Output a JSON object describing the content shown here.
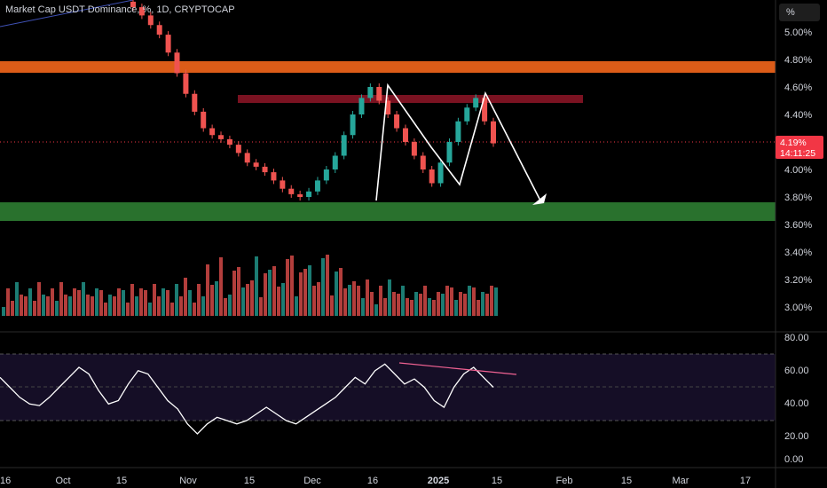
{
  "header": {
    "title": "Market Cap USDT Dominance, %, 1D, CRYPTOCAP",
    "scale_button": "%"
  },
  "price_badge": {
    "value": "4.19%",
    "countdown": "14:11:25"
  },
  "price_axis": [
    "5.00%",
    "4.80%",
    "4.60%",
    "4.40%",
    "4.20%",
    "4.00%",
    "3.80%",
    "3.60%",
    "3.40%",
    "3.20%",
    "3.00%"
  ],
  "rsi_axis": [
    "80.00",
    "60.00",
    "40.00",
    "20.00",
    "0.00"
  ],
  "time_axis": [
    "16",
    "Oct",
    "15",
    "Nov",
    "15",
    "Dec",
    "16",
    "2025",
    "15",
    "Feb",
    "15",
    "Mar",
    "17"
  ],
  "colors": {
    "up": "#26a69a",
    "down": "#ef5350",
    "resistance_zone": "#f4661b",
    "support_zone": "#2e7d32",
    "rsi_line": "#ffffff",
    "divergence": "#f06292",
    "badge": "#f23645"
  },
  "chart_data": {
    "type": "line",
    "series": [
      {
        "values": [
          5.18,
          5.12,
          5.05,
          4.98,
          4.85,
          4.7,
          4.55,
          4.42,
          4.3,
          4.25,
          4.22,
          4.18,
          4.12,
          4.05,
          4.02,
          3.98,
          3.92,
          3.86,
          3.82,
          3.8,
          3.84,
          3.92,
          4.0,
          4.1,
          4.25,
          4.4,
          4.52,
          4.6,
          4.5,
          4.4,
          4.3,
          4.2,
          4.1,
          4.0,
          3.9,
          4.05,
          4.2,
          4.35,
          4.45,
          4.52,
          4.35,
          4.19
        ]
      }
    ],
    "ylim": [
      2.95,
      5.2
    ],
    "rsi": {
      "values": [
        56,
        50,
        44,
        40,
        39,
        44,
        50,
        56,
        62,
        58,
        48,
        40,
        42,
        52,
        60,
        58,
        50,
        42,
        37,
        28,
        22,
        28,
        32,
        30,
        28,
        30,
        34,
        38,
        34,
        30,
        28,
        32,
        36,
        40,
        44,
        50,
        56,
        52,
        60,
        64,
        58,
        52,
        55,
        50,
        42,
        38,
        50,
        58,
        62,
        56,
        50
      ],
      "overbought": 70,
      "oversold": 30,
      "ylim": [
        0,
        90
      ]
    }
  }
}
